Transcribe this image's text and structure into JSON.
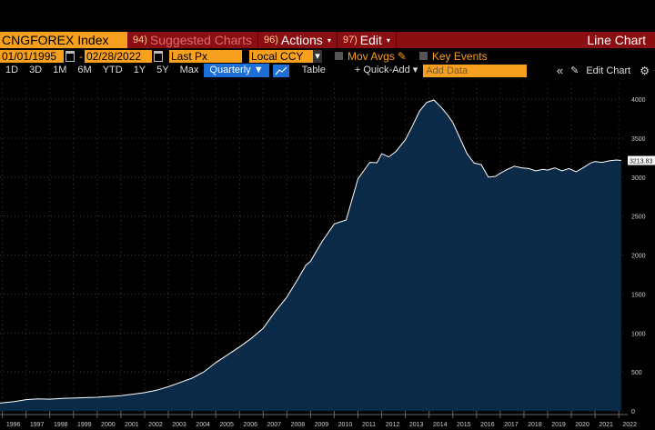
{
  "header": {
    "ticker": "CNGFOREX Index",
    "menu": [
      {
        "num": "94)",
        "label": "Suggested Charts",
        "dim": true
      },
      {
        "num": "96)",
        "label": "Actions",
        "caret": "▾"
      },
      {
        "num": "97)",
        "label": "Edit",
        "caret": "▾"
      }
    ],
    "chart_type": "Line Chart"
  },
  "controls": {
    "start_date": "01/01/1995",
    "range_sep": "-",
    "end_date": "02/28/2022",
    "field": "Last Px",
    "currency": "Local CCY",
    "mov_avgs": "Mov Avgs",
    "key_events": "Key Events"
  },
  "toolbar": {
    "ranges": [
      "1D",
      "3D",
      "1M",
      "6M",
      "YTD",
      "1Y",
      "5Y",
      "Max"
    ],
    "period": "Quarterly ▼",
    "table": "Table",
    "quick_add": "+ Quick-Add ▾",
    "add_data_placeholder": "Add Data",
    "collapse": "«",
    "edit_chart": "Edit Chart",
    "settings_icon": "gear-icon"
  },
  "chart_data": {
    "type": "area",
    "title": "",
    "xlabel": "",
    "ylabel": "",
    "ylim": [
      0,
      4200
    ],
    "yticks": [
      0,
      500,
      1000,
      1500,
      2000,
      2500,
      3000,
      3500,
      4000
    ],
    "xlim": [
      1995.9,
      2022.3
    ],
    "xticks": [
      "1996",
      "1997",
      "1998",
      "1999",
      "2000",
      "2001",
      "2002",
      "2003",
      "2004",
      "2005",
      "2006",
      "2007",
      "2008",
      "2009",
      "2010",
      "2011",
      "2012",
      "2013",
      "2014",
      "2015",
      "2016",
      "2017",
      "2018",
      "2019",
      "2020",
      "2021",
      "2022"
    ],
    "last_value_label": "3213.83",
    "colors": {
      "fill": "#0b2a47",
      "line": "#ffffff",
      "grid": "#3a3a3a",
      "label_box": "#ffffff"
    },
    "x": [
      1995.9,
      1996.5,
      1997.0,
      1997.5,
      1998.0,
      1998.5,
      1999.0,
      1999.5,
      2000.0,
      2000.5,
      2001.0,
      2001.5,
      2002.0,
      2002.5,
      2003.0,
      2003.5,
      2004.0,
      2004.5,
      2005.0,
      2005.5,
      2006.0,
      2006.5,
      2007.0,
      2007.5,
      2008.0,
      2008.5,
      2008.8,
      2009.0,
      2009.5,
      2010.0,
      2010.5,
      2011.0,
      2011.5,
      2011.8,
      2012.0,
      2012.3,
      2012.6,
      2013.0,
      2013.3,
      2013.6,
      2013.9,
      2014.2,
      2014.5,
      2014.8,
      2015.0,
      2015.3,
      2015.6,
      2015.9,
      2016.2,
      2016.5,
      2016.8,
      2017.0,
      2017.3,
      2017.6,
      2017.9,
      2018.2,
      2018.5,
      2018.8,
      2019.0,
      2019.3,
      2019.6,
      2019.9,
      2020.2,
      2020.5,
      2020.8,
      2021.0,
      2021.3,
      2021.6,
      2021.9,
      2022.1
    ],
    "values": [
      100,
      120,
      145,
      155,
      150,
      160,
      165,
      170,
      175,
      185,
      195,
      215,
      235,
      265,
      310,
      365,
      420,
      500,
      620,
      720,
      820,
      930,
      1060,
      1270,
      1460,
      1710,
      1870,
      1920,
      2180,
      2400,
      2450,
      2980,
      3190,
      3185,
      3300,
      3260,
      3330,
      3480,
      3660,
      3850,
      3960,
      3990,
      3900,
      3790,
      3700,
      3500,
      3300,
      3180,
      3160,
      3000,
      3010,
      3050,
      3100,
      3140,
      3120,
      3110,
      3080,
      3100,
      3090,
      3120,
      3080,
      3110,
      3070,
      3120,
      3180,
      3200,
      3190,
      3210,
      3220,
      3213.83
    ]
  }
}
